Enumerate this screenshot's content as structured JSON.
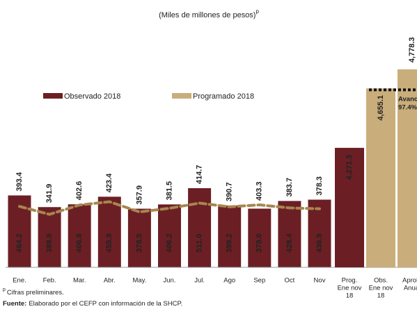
{
  "chart_data": {
    "type": "bar",
    "title": "(Miles de millones de pesos)",
    "title_note": "p",
    "categories": [
      "Ene.",
      "Feb.",
      "Mar.",
      "Abr.",
      "May.",
      "Jun.",
      "Jul.",
      "Ago",
      "Sep",
      "Oct",
      "Nov"
    ],
    "series": [
      {
        "name": "Observado 2018",
        "color": "#6b1f24",
        "values": [
          464.2,
          388.9,
          406.8,
          455.9,
          378.5,
          406.2,
          511.0,
          399.2,
          379.0,
          428.4,
          436.9
        ],
        "value_labels": [
          "464.2",
          "388.9",
          "406.8",
          "455.9",
          "378.5",
          "406.2",
          "511.0",
          "399.2",
          "379.0",
          "428.4",
          "436.9"
        ]
      },
      {
        "name": "Programado 2018",
        "color": "#c9ad7a",
        "label_color": "#b5702a",
        "values": [
          393.4,
          341.9,
          402.6,
          423.4,
          357.9,
          381.5,
          414.7,
          390.7,
          403.3,
          383.7,
          378.3
        ],
        "value_labels": [
          "393.4",
          "341.9",
          "402.6",
          "423.4",
          "357.9",
          "381.5",
          "414.7",
          "390.7",
          "403.3",
          "383.7",
          "378.3"
        ]
      }
    ],
    "ylim": [
      0,
      1300
    ],
    "cumulative": {
      "categories": [
        [
          "Prog.",
          "Ene nov",
          "18"
        ],
        [
          "Obs.",
          "Ene nov",
          "18"
        ],
        [
          "Aprob.",
          "Anual"
        ]
      ],
      "values": [
        4271.5,
        4655.1,
        4778.3
      ],
      "value_labels": [
        "4,271.5",
        "4,655.1",
        "4,778.3"
      ],
      "colors": [
        "#6b1f24",
        "#c9ad7a",
        "#c9ad7a"
      ]
    },
    "y2lim": [
      3500,
      4800
    ],
    "annotation": [
      "Avance",
      "97.4%"
    ],
    "footnote": {
      "mark": "p",
      "text": "Cifras preliminares."
    },
    "source": {
      "label": "Fuente:",
      "text": "Elaborado por el CEFP con información de la SHCP."
    }
  }
}
